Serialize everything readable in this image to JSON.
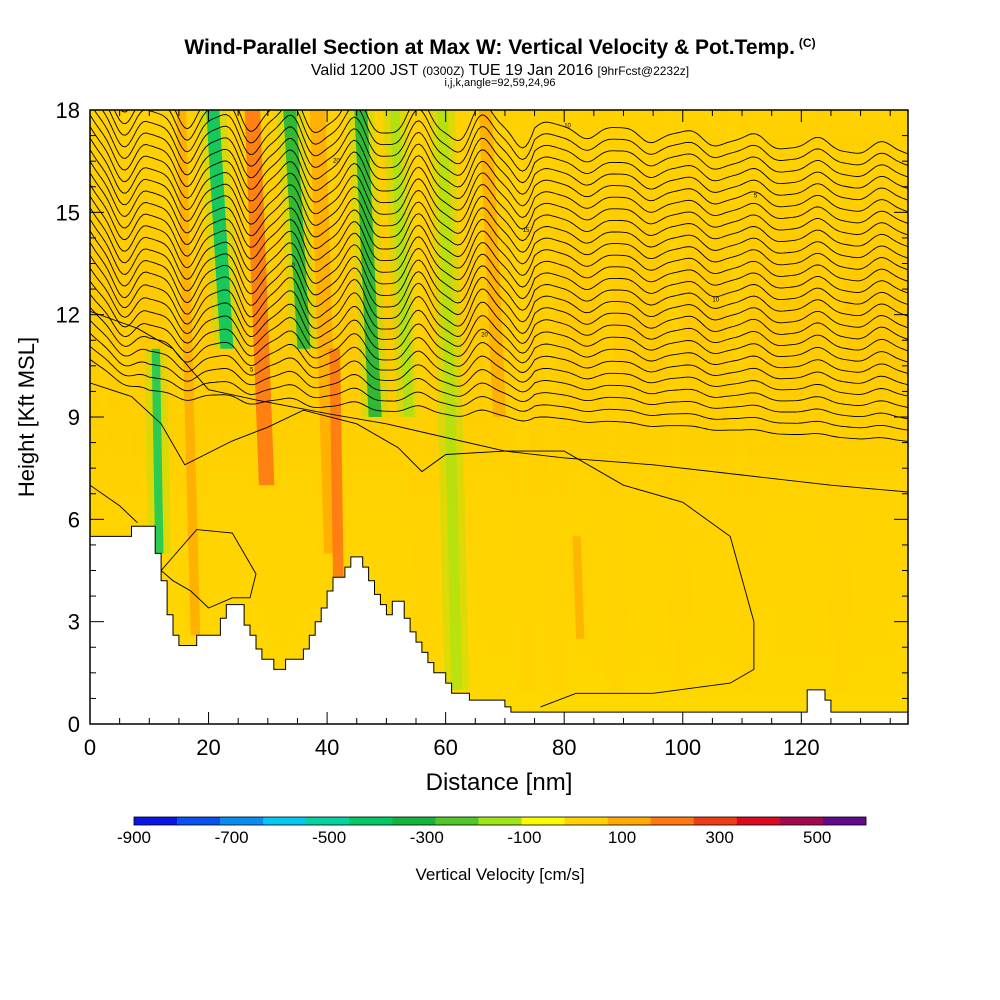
{
  "chart_data": {
    "type": "heatmap",
    "title": "Wind-Parallel Section at Max W: Vertical Velocity & Pot.Temp.",
    "title_mark": "(C)",
    "subtitle_valid": "Valid 1200 JST",
    "subtitle_utc": "(0300Z)",
    "subtitle_date": "TUE 19 Jan 2016",
    "subtitle_fcst": "[9hrFcst@2232z]",
    "subtitle_indices": "i,j,k,angle=92,59,24,96",
    "xlabel": "Distance [nm]",
    "ylabel": "Height [Kft MSL]",
    "xlim": [
      0,
      138
    ],
    "ylim": [
      0,
      18
    ],
    "x_ticks": [
      "0",
      "20",
      "40",
      "60",
      "80",
      "100",
      "120"
    ],
    "y_ticks": [
      "0",
      "3",
      "6",
      "9",
      "12",
      "15",
      "18"
    ],
    "colorbar": {
      "label": "Vertical Velocity [cm/s]",
      "tick_labels": [
        "-900",
        "-700",
        "-500",
        "-300",
        "-100",
        "100",
        "300",
        "500"
      ],
      "range": [
        -900,
        600
      ],
      "step": 100,
      "colors": [
        "#0a14e6",
        "#0a50f0",
        "#0a8cf0",
        "#00c8f0",
        "#00d2a0",
        "#00c864",
        "#14b43c",
        "#50c828",
        "#a0e614",
        "#fafa00",
        "#ffd200",
        "#ffaa00",
        "#ff7814",
        "#f03c14",
        "#dc0a1e",
        "#a00a50",
        "#640a8c"
      ]
    },
    "terrain": [
      [
        0,
        5.5
      ],
      [
        7,
        5.5
      ],
      [
        7,
        5.8
      ],
      [
        11,
        5.8
      ],
      [
        11,
        5
      ],
      [
        12,
        5
      ],
      [
        12,
        4.2
      ],
      [
        13,
        4.2
      ],
      [
        13,
        3.2
      ],
      [
        14,
        3.2
      ],
      [
        14,
        2.6
      ],
      [
        15,
        2.6
      ],
      [
        15,
        2.3
      ],
      [
        18,
        2.3
      ],
      [
        18,
        2.6
      ],
      [
        22,
        2.6
      ],
      [
        22,
        3.1
      ],
      [
        23,
        3.1
      ],
      [
        23,
        3.5
      ],
      [
        26,
        3.5
      ],
      [
        26,
        2.9
      ],
      [
        27,
        2.9
      ],
      [
        27,
        2.6
      ],
      [
        28,
        2.6
      ],
      [
        28,
        2.2
      ],
      [
        29,
        2.2
      ],
      [
        29,
        1.9
      ],
      [
        31,
        1.9
      ],
      [
        31,
        1.6
      ],
      [
        33,
        1.6
      ],
      [
        33,
        1.9
      ],
      [
        36,
        1.9
      ],
      [
        36,
        2.2
      ],
      [
        37,
        2.2
      ],
      [
        37,
        2.6
      ],
      [
        38,
        2.6
      ],
      [
        38,
        3
      ],
      [
        39,
        3
      ],
      [
        39,
        3.4
      ],
      [
        40,
        3.4
      ],
      [
        40,
        3.9
      ],
      [
        41,
        3.9
      ],
      [
        41,
        4.3
      ],
      [
        43,
        4.3
      ],
      [
        43,
        4.6
      ],
      [
        44,
        4.6
      ],
      [
        44,
        4.9
      ],
      [
        46,
        4.9
      ],
      [
        46,
        4.6
      ],
      [
        47,
        4.6
      ],
      [
        47,
        4.2
      ],
      [
        48,
        4.2
      ],
      [
        48,
        3.8
      ],
      [
        49,
        3.8
      ],
      [
        49,
        3.5
      ],
      [
        50,
        3.5
      ],
      [
        50,
        3.2
      ],
      [
        51,
        3.2
      ],
      [
        51,
        3.6
      ],
      [
        53,
        3.6
      ],
      [
        53,
        3.1
      ],
      [
        54,
        3.1
      ],
      [
        54,
        2.7
      ],
      [
        55,
        2.7
      ],
      [
        55,
        2.4
      ],
      [
        56,
        2.4
      ],
      [
        56,
        2.1
      ],
      [
        57,
        2.1
      ],
      [
        57,
        1.8
      ],
      [
        58,
        1.8
      ],
      [
        58,
        1.5
      ],
      [
        60,
        1.5
      ],
      [
        60,
        1.2
      ],
      [
        61,
        1.2
      ],
      [
        61,
        0.9
      ],
      [
        64,
        0.9
      ],
      [
        64,
        0.7
      ],
      [
        70,
        0.7
      ],
      [
        70,
        0.5
      ],
      [
        71,
        0.5
      ],
      [
        71,
        0.35
      ],
      [
        121,
        0.35
      ],
      [
        121,
        1
      ],
      [
        124,
        1
      ],
      [
        124,
        0.7
      ],
      [
        125,
        0.7
      ],
      [
        125,
        0.35
      ],
      [
        138,
        0.35
      ]
    ],
    "bands": [
      {
        "x": 14,
        "w": 1.6,
        "top": 18,
        "bottom": 9,
        "value": 150,
        "opacity": 0.6
      },
      {
        "x": 17,
        "w": 1.6,
        "top": 18,
        "bottom": 2.6,
        "value": 250,
        "opacity": 0.85
      },
      {
        "x": 22,
        "w": 2.2,
        "top": 18,
        "bottom": 11,
        "value": -350,
        "opacity": 0.9
      },
      {
        "x": 28.5,
        "w": 2.6,
        "top": 18,
        "bottom": 7,
        "value": 350,
        "opacity": 0.9
      },
      {
        "x": 35,
        "w": 2.2,
        "top": 18,
        "bottom": 11,
        "value": -250,
        "opacity": 0.85
      },
      {
        "x": 39.5,
        "w": 2.6,
        "top": 18,
        "bottom": 5,
        "value": 250,
        "opacity": 0.85
      },
      {
        "x": 41,
        "w": 1.8,
        "top": 11,
        "bottom": 4.2,
        "value": 350,
        "opacity": 0.9
      },
      {
        "x": 47,
        "w": 2.2,
        "top": 18,
        "bottom": 9,
        "value": -250,
        "opacity": 0.85
      },
      {
        "x": 53,
        "w": 1.6,
        "top": 18,
        "bottom": 9,
        "value": -50,
        "opacity": 0.7
      },
      {
        "x": 56,
        "w": 1.8,
        "top": 18,
        "bottom": 2,
        "value": 150,
        "opacity": 0.7
      },
      {
        "x": 61,
        "w": 1.8,
        "top": 18,
        "bottom": 1,
        "value": -50,
        "opacity": 0.6
      },
      {
        "x": 68,
        "w": 2.2,
        "top": 18,
        "bottom": 9,
        "value": 250,
        "opacity": 0.85
      },
      {
        "x": 73,
        "w": 2.2,
        "top": 18,
        "bottom": 1,
        "value": 150,
        "opacity": 0.65
      },
      {
        "x": 78,
        "w": 1.8,
        "top": 18,
        "bottom": 1,
        "value": 150,
        "opacity": 0.6
      },
      {
        "x": 82,
        "w": 1.4,
        "top": 5.5,
        "bottom": 2.5,
        "value": 200,
        "opacity": 0.7
      },
      {
        "x": 88,
        "w": 1.8,
        "top": 18,
        "bottom": 1,
        "value": 150,
        "opacity": 0.55
      },
      {
        "x": 99,
        "w": 1.8,
        "top": 18,
        "bottom": 1,
        "value": 150,
        "opacity": 0.6
      },
      {
        "x": 110,
        "w": 1.8,
        "top": 18,
        "bottom": 1,
        "value": 150,
        "opacity": 0.6
      },
      {
        "x": 126,
        "w": 1.8,
        "top": 18,
        "bottom": 1,
        "value": 150,
        "opacity": 0.55
      },
      {
        "x": 11,
        "w": 1.4,
        "top": 11,
        "bottom": 5,
        "value": -350,
        "opacity": 0.8
      },
      {
        "x": 2,
        "w": 1.4,
        "top": 12,
        "bottom": 6,
        "value": 150,
        "opacity": 0.55
      },
      {
        "x": 6,
        "w": 1.4,
        "top": 12,
        "bottom": 6,
        "value": 150,
        "opacity": 0.5
      }
    ],
    "contours": {
      "count": 26,
      "base": 9.8,
      "spacing": 0.34,
      "low_contours": [
        [
          [
            0,
            12.1
          ],
          [
            8,
            11.6
          ],
          [
            14,
            11
          ],
          [
            20,
            9.8
          ],
          [
            28,
            9.5
          ],
          [
            40,
            9.1
          ],
          [
            50,
            8.8
          ],
          [
            60,
            8.4
          ],
          [
            70,
            8
          ],
          [
            80,
            7.8
          ],
          [
            95,
            7.6
          ],
          [
            110,
            7.3
          ],
          [
            125,
            7
          ],
          [
            138,
            6.8
          ]
        ],
        [
          [
            0,
            7
          ],
          [
            5,
            6.4
          ],
          [
            8,
            5.9
          ]
        ],
        [
          [
            12,
            4.5
          ],
          [
            18,
            5.7
          ],
          [
            24,
            5.6
          ],
          [
            28,
            4.4
          ],
          [
            27,
            3.7
          ],
          [
            24,
            3.7
          ],
          [
            20,
            3.4
          ],
          [
            17,
            3.9
          ],
          [
            14,
            4.2
          ]
        ]
      ],
      "mid_contour": [
        [
          0,
          10
        ],
        [
          7,
          9.6
        ],
        [
          12,
          8.8
        ],
        [
          16,
          7.6
        ],
        [
          24,
          8.3
        ],
        [
          30,
          8.7
        ],
        [
          36,
          9.2
        ],
        [
          45,
          8.8
        ],
        [
          52,
          8.1
        ],
        [
          56,
          7.4
        ],
        [
          60,
          7.9
        ],
        [
          70,
          8
        ],
        [
          80,
          8
        ],
        [
          90,
          7
        ],
        [
          100,
          6.5
        ],
        [
          108,
          5.5
        ],
        [
          112,
          3
        ],
        [
          112,
          1.6
        ],
        [
          108,
          1.2
        ],
        [
          95,
          0.9
        ],
        [
          82,
          0.9
        ],
        [
          76,
          0.5
        ]
      ],
      "labels": [
        "0",
        "5",
        "10",
        "15",
        "20"
      ]
    }
  }
}
